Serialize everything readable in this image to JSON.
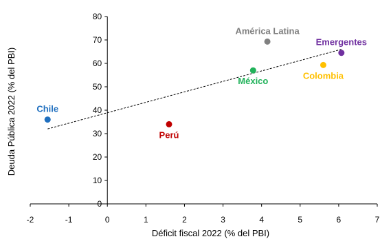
{
  "chart_data": {
    "type": "scatter",
    "title": "",
    "xlabel": "Déficit fiscal 2022 (% del PBI)",
    "ylabel": "Deuda Pública 2022 (% del PBI)",
    "xlim": [
      -2,
      7
    ],
    "ylim": [
      0,
      80
    ],
    "x_ticks": [
      -2,
      -1,
      0,
      1,
      2,
      3,
      4,
      5,
      6,
      7
    ],
    "y_ticks": [
      0,
      10,
      20,
      30,
      40,
      50,
      60,
      70,
      80
    ],
    "grid": false,
    "legend": "none",
    "points": [
      {
        "label": "Chile",
        "x": -1.55,
        "y": 36,
        "color": "#1f6fbf",
        "label_position": "top"
      },
      {
        "label": "Perú",
        "x": 1.6,
        "y": 34,
        "color": "#c00000",
        "label_position": "bottom"
      },
      {
        "label": "México",
        "x": 3.78,
        "y": 57,
        "color": "#21b25a",
        "label_position": "bottom"
      },
      {
        "label": "América Latina",
        "x": 4.15,
        "y": 69.3,
        "color": "#808080",
        "label_position": "top"
      },
      {
        "label": "Colombia",
        "x": 5.6,
        "y": 59.3,
        "color": "#ffc000",
        "label_position": "bottom"
      },
      {
        "label": "Emergentes",
        "x": 6.07,
        "y": 64.5,
        "color": "#7030a0",
        "label_position": "top"
      }
    ],
    "trendline": {
      "style": "dotted",
      "color": "#000000",
      "from": [
        -1.55,
        32
      ],
      "to": [
        6.07,
        66
      ]
    }
  }
}
